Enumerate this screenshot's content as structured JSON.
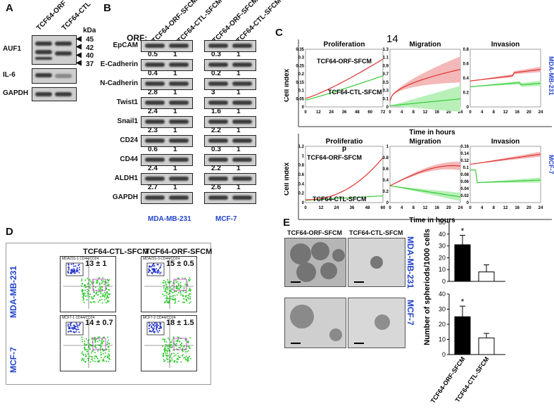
{
  "panel_a": {
    "letter": "A",
    "lanes": [
      "TCF64-ORF",
      "TCF64-CTL"
    ],
    "kda_label": "kDa",
    "markers": [
      "45",
      "42",
      "40",
      "37"
    ],
    "rows": [
      "AUF1",
      "IL-6",
      "GAPDH"
    ]
  },
  "panel_b": {
    "letter": "B",
    "orf_label": "ORF:",
    "lanes": [
      "TCF64-ORF-SFCM",
      "TCF64-CTL-SFCM",
      "TCF64-ORF-SFCM",
      "TCF64-CTL-SFCM"
    ],
    "rows": [
      {
        "name": "EpCAM",
        "mda": [
          "0.5",
          "1"
        ],
        "mcf": [
          "0.3",
          "1"
        ]
      },
      {
        "name": "E-Cadherin",
        "mda": [
          "0.4",
          "1"
        ],
        "mcf": [
          "0.2",
          "1"
        ]
      },
      {
        "name": "N-Cadherin",
        "mda": [
          "2.8",
          "1"
        ],
        "mcf": [
          "3",
          "1"
        ]
      },
      {
        "name": "Twist1",
        "mda": [
          "2.4",
          "1"
        ],
        "mcf": [
          "1.6",
          "1"
        ]
      },
      {
        "name": "Snail1",
        "mda": [
          "2.3",
          "1"
        ],
        "mcf": [
          "2.2",
          "1"
        ]
      },
      {
        "name": "CD24",
        "mda": [
          "0.6",
          "1"
        ],
        "mcf": [
          "0.3",
          "1"
        ]
      },
      {
        "name": "CD44",
        "mda": [
          "2.4",
          "1"
        ],
        "mcf": [
          "2.2",
          "1"
        ]
      },
      {
        "name": "ALDH1",
        "mda": [
          "2.7",
          "1"
        ],
        "mcf": [
          "2.6",
          "1"
        ]
      },
      {
        "name": "GAPDH",
        "mda": [
          "",
          ""
        ],
        "mcf": [
          "",
          ""
        ]
      }
    ],
    "cell_lines": [
      "MDA-MB-231",
      "MCF-7"
    ]
  },
  "panel_c": {
    "letter": "C",
    "top_titles": [
      "Proliferation",
      "Migration",
      "Invasion"
    ],
    "top_extra": "14",
    "bottom_titles": [
      "Proliferatio",
      "p",
      "Migration",
      "Invasion"
    ],
    "y_label": "Cell index",
    "x_label": "Time in hours",
    "series_orf": "TCF64-ORF-SFCM",
    "series_ctl": "TCF64-CTL-SFCM",
    "cell_lines": [
      "MDA-MB-231",
      "MCF-7"
    ],
    "colors": {
      "orf": "#e03030",
      "ctl": "#33cc33",
      "orf_band": "#f4b8b8",
      "ctl_band": "#b8f0b8"
    },
    "top": {
      "prolif": {
        "x_ticks": [
          "0",
          "12",
          "24",
          "36",
          "48",
          "60",
          "72"
        ],
        "y_ticks": [
          "0",
          "0.05",
          "0.1",
          "0.15",
          "0.2",
          "0.25",
          "0.3",
          "0.35"
        ]
      },
      "migr": {
        "x_ticks": [
          "0",
          "4",
          "8",
          "12",
          "16",
          "20",
          "24"
        ],
        "y_ticks": [
          "0",
          "0.1",
          "0.3",
          "0.5",
          "0.7",
          "0.9",
          "1.1",
          "1.3"
        ]
      },
      "inv": {
        "x_ticks": [
          "0",
          "4",
          "8",
          "12",
          "16",
          "20",
          "24"
        ],
        "y_ticks": [
          "0",
          "0.2",
          "0.4",
          "0.6",
          "0.8"
        ]
      }
    },
    "bottom": {
      "prolif": {
        "x_ticks": [
          "0",
          "12",
          "24",
          "36",
          "48",
          "60"
        ],
        "y_ticks": [
          "0",
          "0.2",
          "0.4",
          "0.6",
          "0.8",
          "1",
          "1.2"
        ]
      },
      "migr": {
        "x_ticks": [
          "0",
          "4",
          "8",
          "12",
          "16",
          "20",
          "24"
        ],
        "y_ticks": [
          "0",
          "0.2",
          "0.4",
          "0.6",
          "0.8",
          "1"
        ]
      },
      "inv": {
        "x_ticks": [
          "0",
          "4",
          "8",
          "12",
          "16",
          "20",
          "24"
        ],
        "y_ticks": [
          "0",
          "0.02",
          "0.04",
          "0.06",
          "0.08",
          "0.1",
          "0.12",
          "0.14",
          "0.16"
        ]
      }
    }
  },
  "panel_d": {
    "letter": "D",
    "columns": [
      "TCF64-CTL-SFCM",
      "TCF64-ORF-SFCM"
    ],
    "rows": [
      {
        "cell_line": "MDA-MB-231",
        "plots": [
          {
            "title": "MDA231-1 CD44/CD24",
            "value": "13 ± 1"
          },
          {
            "title": "MDA231-3 CD44/CD24",
            "value": "15 ± 0.5"
          }
        ]
      },
      {
        "cell_line": "MCF-7",
        "plots": [
          {
            "title": "MCF7-1 CD44/CD24",
            "value": "14 ± 0.7"
          },
          {
            "title": "MCF7-2 CD44/CD24",
            "value": "18 ± 1.5"
          }
        ]
      }
    ],
    "y_axis": "CD44 Pacific Blue-A",
    "x_axis": "CD24 PE-A",
    "quadrants": [
      "Q1",
      "Q2",
      "Q3",
      "Q4"
    ],
    "gates": [
      "P5",
      "P6"
    ]
  },
  "panel_e": {
    "letter": "E",
    "columns": [
      "TCF64-ORF-SFCM",
      "TCF64-CTL-SFCM"
    ],
    "cell_lines": [
      "MDA-MB-231",
      "MCF-7"
    ],
    "y_label": "Number of spheriods/1000 cells",
    "significance": "*"
  },
  "chart_data": [
    {
      "type": "bar",
      "title": "",
      "ylabel": "Number of spheriods/1000 cells",
      "categories": [
        "TCF64-ORF-SFCM",
        "TCF64-CTL-SFCM"
      ],
      "values": [
        31,
        8
      ],
      "errors": [
        8,
        6
      ],
      "ylim": [
        0,
        50
      ],
      "y_ticks": [
        "0",
        "10",
        "20",
        "30",
        "40",
        "50"
      ],
      "cell_line": "MDA-MB-231"
    },
    {
      "type": "bar",
      "title": "",
      "ylabel": "Number of spheriods/1000 cells",
      "categories": [
        "TCF64-ORF-SFCM",
        "TCF64-CTL-SFCM"
      ],
      "values": [
        25,
        11
      ],
      "errors": [
        7,
        3
      ],
      "ylim": [
        0,
        40
      ],
      "y_ticks": [
        "0",
        "10",
        "20",
        "30",
        "40"
      ],
      "cell_line": "MCF-7"
    }
  ]
}
